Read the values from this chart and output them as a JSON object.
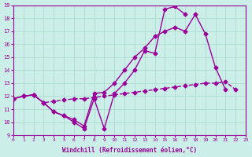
{
  "xlabel": "Windchill (Refroidissement éolien,°C)",
  "bg_color": "#cceee8",
  "grid_color": "#aaddcc",
  "line_color": "#990099",
  "xlim": [
    0,
    23
  ],
  "ylim": [
    9,
    19
  ],
  "xticks": [
    0,
    1,
    2,
    3,
    4,
    5,
    6,
    7,
    8,
    9,
    10,
    11,
    12,
    13,
    14,
    15,
    16,
    17,
    18,
    19,
    20,
    21,
    22,
    23
  ],
  "yticks": [
    9,
    10,
    11,
    12,
    13,
    14,
    15,
    16,
    17,
    18,
    19
  ],
  "line1_xy": [
    [
      0,
      11.8
    ],
    [
      1,
      12.0
    ],
    [
      2,
      12.1
    ],
    [
      3,
      11.5
    ],
    [
      4,
      10.8
    ],
    [
      5,
      10.5
    ],
    [
      6,
      10.0
    ],
    [
      7,
      9.5
    ],
    [
      8,
      11.8
    ],
    [
      9,
      9.5
    ],
    [
      10,
      12.2
    ],
    [
      11,
      13.0
    ],
    [
      12,
      14.0
    ],
    [
      13,
      15.5
    ],
    [
      14,
      15.3
    ],
    [
      15,
      18.7
    ],
    [
      16,
      18.9
    ],
    [
      17,
      18.3
    ],
    [
      18,
      null
    ],
    [
      19,
      null
    ],
    [
      20,
      null
    ],
    [
      21,
      null
    ],
    [
      22,
      null
    ]
  ],
  "line2_xy": [
    [
      0,
      11.8
    ],
    [
      1,
      12.0
    ],
    [
      2,
      12.1
    ],
    [
      3,
      11.5
    ],
    [
      4,
      10.8
    ],
    [
      5,
      10.5
    ],
    [
      6,
      10.2
    ],
    [
      7,
      9.7
    ],
    [
      8,
      12.2
    ],
    [
      9,
      12.3
    ],
    [
      10,
      13.0
    ],
    [
      11,
      14.0
    ],
    [
      12,
      15.0
    ],
    [
      13,
      15.7
    ],
    [
      14,
      16.6
    ],
    [
      15,
      17.0
    ],
    [
      16,
      17.3
    ],
    [
      17,
      17.0
    ],
    [
      18,
      18.3
    ],
    [
      19,
      16.8
    ],
    [
      20,
      14.2
    ],
    [
      21,
      12.5
    ],
    [
      22,
      null
    ],
    [
      23,
      null
    ]
  ],
  "line3_xy": [
    [
      0,
      11.8
    ],
    [
      1,
      12.0
    ],
    [
      2,
      12.1
    ],
    [
      3,
      11.5
    ],
    [
      4,
      11.6
    ],
    [
      5,
      11.7
    ],
    [
      6,
      11.8
    ],
    [
      7,
      11.8
    ],
    [
      8,
      11.9
    ],
    [
      9,
      12.0
    ],
    [
      10,
      12.1
    ],
    [
      11,
      12.2
    ],
    [
      12,
      12.3
    ],
    [
      13,
      12.4
    ],
    [
      14,
      12.5
    ],
    [
      15,
      12.6
    ],
    [
      16,
      12.7
    ],
    [
      17,
      12.8
    ],
    [
      18,
      12.9
    ],
    [
      19,
      13.0
    ],
    [
      20,
      13.0
    ],
    [
      21,
      13.1
    ],
    [
      22,
      12.5
    ],
    [
      23,
      null
    ]
  ],
  "marker": "D",
  "markersize": 2.5,
  "linewidth": 1.0
}
